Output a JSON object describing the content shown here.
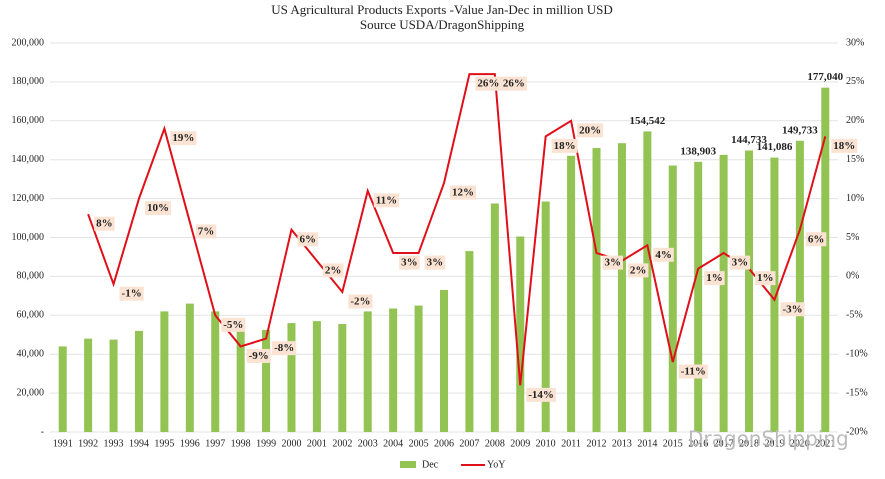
{
  "chart_data": {
    "type": "bar+line",
    "title": "US Agricultural Products Exports -Value Jan-Dec in million USD",
    "subtitle": "Source USDA/DragonShipping",
    "watermark": "DragonShipping",
    "categories": [
      "1991",
      "1992",
      "1993",
      "1994",
      "1995",
      "1996",
      "1997",
      "1998",
      "1999",
      "2000",
      "2001",
      "2002",
      "2003",
      "2004",
      "2005",
      "2006",
      "2007",
      "2008",
      "2009",
      "2010",
      "2011",
      "2012",
      "2013",
      "2014",
      "2015",
      "2016",
      "2017",
      "2018",
      "2019",
      "2020",
      "2021"
    ],
    "series": [
      {
        "name": "Dec",
        "color": "#92c353",
        "kind": "bar",
        "values": [
          44000,
          48000,
          47500,
          52000,
          62000,
          66000,
          62000,
          57000,
          52500,
          56000,
          57000,
          55500,
          62000,
          63500,
          65000,
          73000,
          93000,
          117500,
          100500,
          118500,
          142000,
          146000,
          148500,
          154542,
          137000,
          138903,
          142500,
          144733,
          141086,
          149733,
          177040
        ],
        "value_labels": [
          null,
          null,
          null,
          null,
          null,
          null,
          null,
          null,
          null,
          null,
          null,
          null,
          null,
          null,
          null,
          null,
          null,
          null,
          null,
          null,
          null,
          null,
          null,
          "154,542",
          null,
          "138,903",
          null,
          "144,733",
          "141,086",
          "149,733",
          "177,040"
        ]
      },
      {
        "name": "YoY",
        "color": "#e0101a",
        "kind": "line",
        "axis": "y2",
        "values": [
          null,
          8,
          -1,
          10,
          19,
          7,
          -5,
          -9,
          -8,
          6,
          2,
          -2,
          11,
          3,
          3,
          12,
          26,
          26,
          -14,
          18,
          20,
          3,
          2,
          4,
          -11,
          1,
          3,
          1,
          -3,
          6,
          18
        ],
        "value_labels": [
          null,
          "8%",
          "-1%",
          "10%",
          "19%",
          "7%",
          "-5%",
          "-9%",
          "-8%",
          "6%",
          "2%",
          "-2%",
          "11%",
          "3%",
          "3%",
          "12%",
          "26%",
          "26%",
          "-14%",
          "18%",
          "20%",
          "3%",
          "2%",
          "4%",
          "-11%",
          "1%",
          "3%",
          "1%",
          "-3%",
          "6%",
          "18%"
        ]
      }
    ],
    "ylim": [
      0,
      200000
    ],
    "yticks": [
      {
        "value": 0,
        "label": "-"
      },
      {
        "value": 20000,
        "label": "20,000"
      },
      {
        "value": 40000,
        "label": "40,000"
      },
      {
        "value": 60000,
        "label": "60,000"
      },
      {
        "value": 80000,
        "label": "80,000"
      },
      {
        "value": 100000,
        "label": "100,000"
      },
      {
        "value": 120000,
        "label": "120,000"
      },
      {
        "value": 140000,
        "label": "140,000"
      },
      {
        "value": 160000,
        "label": "160,000"
      },
      {
        "value": 180000,
        "label": "180,000"
      },
      {
        "value": 200000,
        "label": "200,000"
      }
    ],
    "y2lim": [
      -20,
      30
    ],
    "y2ticks": [
      {
        "value": -20,
        "label": "-20%"
      },
      {
        "value": -15,
        "label": "-15%"
      },
      {
        "value": -10,
        "label": "-10%"
      },
      {
        "value": -5,
        "label": "-5%"
      },
      {
        "value": 0,
        "label": "0%"
      },
      {
        "value": 5,
        "label": "5%"
      },
      {
        "value": 10,
        "label": "10%"
      },
      {
        "value": 15,
        "label": "15%"
      },
      {
        "value": 20,
        "label": "20%"
      },
      {
        "value": 25,
        "label": "25%"
      },
      {
        "value": 30,
        "label": "30%"
      }
    ],
    "grid": true,
    "legend": "bottom"
  }
}
